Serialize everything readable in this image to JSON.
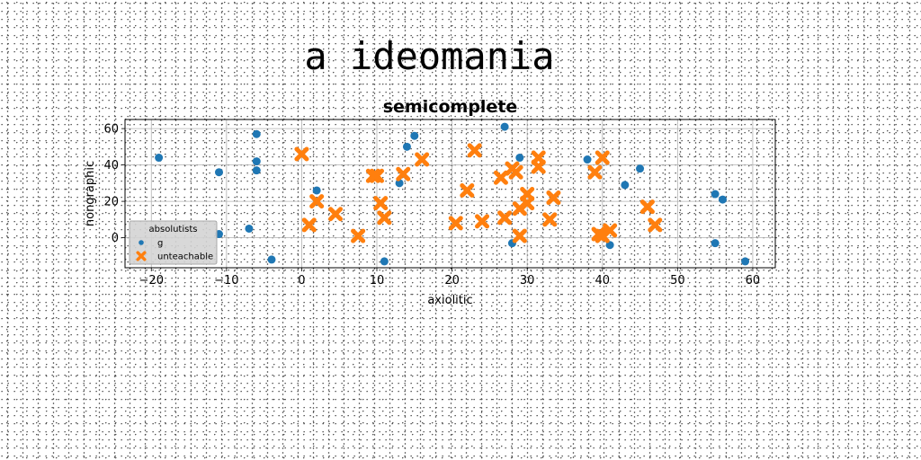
{
  "suptitle": "a ideomania",
  "chart_data": {
    "type": "scatter",
    "title": "semicomplete",
    "xlabel": "axiolitic",
    "ylabel": "nongraphic",
    "xlim": [
      -23.5,
      63
    ],
    "ylim": [
      -16.5,
      65
    ],
    "xticks": [
      -20,
      -10,
      0,
      10,
      20,
      30,
      40,
      50,
      60
    ],
    "yticks": [
      0,
      20,
      40,
      60
    ],
    "grid": true,
    "legend": {
      "title": "absolutists",
      "placement": "lower-left"
    },
    "series": [
      {
        "name": "g",
        "marker": "circle",
        "color": "#1f77b4",
        "x": [
          -19,
          -11,
          -11,
          -7,
          -6,
          -6,
          -6,
          -4,
          2,
          11,
          13,
          14,
          15,
          27,
          28,
          29,
          38,
          41,
          43,
          45,
          55,
          55,
          56,
          59
        ],
        "y": [
          44,
          36,
          2,
          5,
          57,
          42,
          37,
          -12,
          26,
          -13,
          30,
          50,
          56,
          61,
          -3,
          44,
          43,
          -4,
          29,
          38,
          24,
          -3,
          21,
          -13
        ]
      },
      {
        "name": "unteachable",
        "marker": "x",
        "color": "#ff7f0e",
        "x": [
          0,
          1,
          2,
          4.5,
          7.5,
          9.5,
          10,
          10.5,
          11,
          13.5,
          16,
          20.5,
          22,
          23,
          24,
          26.5,
          27,
          28,
          28.5,
          29,
          29,
          30,
          30,
          31.5,
          31.5,
          33,
          33.5,
          39,
          39.5,
          40,
          40,
          41,
          46,
          47
        ],
        "y": [
          46,
          7,
          20,
          13,
          1,
          34,
          34,
          19,
          11,
          35,
          43,
          8,
          26,
          48,
          9,
          33,
          11,
          38,
          36,
          1,
          16,
          24,
          19,
          44,
          39,
          10,
          22,
          36,
          2,
          44,
          1,
          4,
          17,
          7
        ]
      }
    ]
  }
}
